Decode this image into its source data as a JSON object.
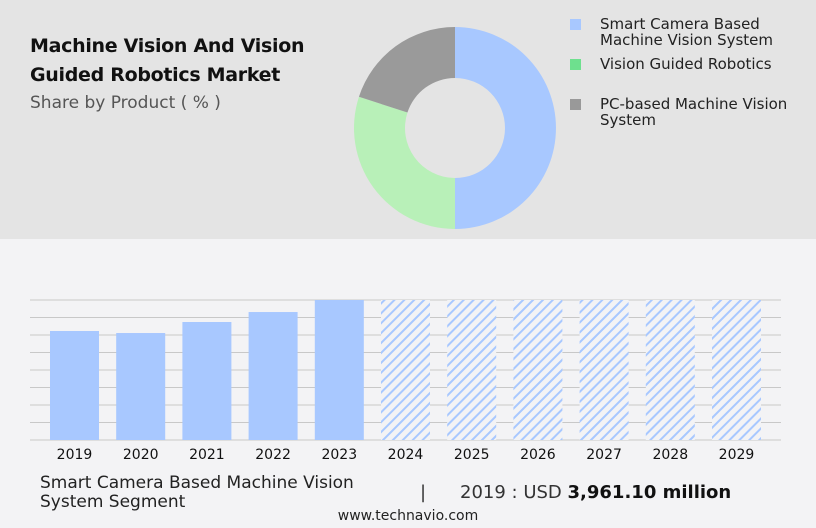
{
  "header": {
    "title": "Machine Vision And Vision Guided Robotics Market",
    "subtitle": "Share by Product ( % )"
  },
  "chart_data": [
    {
      "type": "pie",
      "donut": true,
      "categories": [
        "Smart Camera Based Machine Vision System",
        "Vision Guided Robotics",
        "PC-based Machine Vision System"
      ],
      "values": [
        50,
        30,
        20
      ],
      "colors": [
        "#a8c8ff",
        "#b8f0b8",
        "#9a9a9a"
      ],
      "legend_colors": [
        "#a8c8ff",
        "#6ee08e",
        "#999999"
      ],
      "legend": "right"
    },
    {
      "type": "bar",
      "categories": [
        "2019",
        "2020",
        "2021",
        "2022",
        "2023",
        "2024",
        "2025",
        "2026",
        "2027",
        "2028",
        "2029"
      ],
      "values": [
        3961.1,
        3888,
        4288,
        4651,
        5088,
        null,
        null,
        null,
        null,
        null,
        null
      ],
      "forecast": [
        "2024",
        "2025",
        "2026",
        "2027",
        "2028",
        "2029"
      ],
      "unit": "USD million",
      "color": "#a8c8ff",
      "grid": true,
      "ylim": [
        0,
        5088
      ]
    }
  ],
  "footer": {
    "segment": "Smart Camera Based Machine Vision System Segment",
    "separator": "|",
    "value_prefix": "2019 : USD",
    "value": "3,961.10 million",
    "site": "www.technavio.com"
  }
}
